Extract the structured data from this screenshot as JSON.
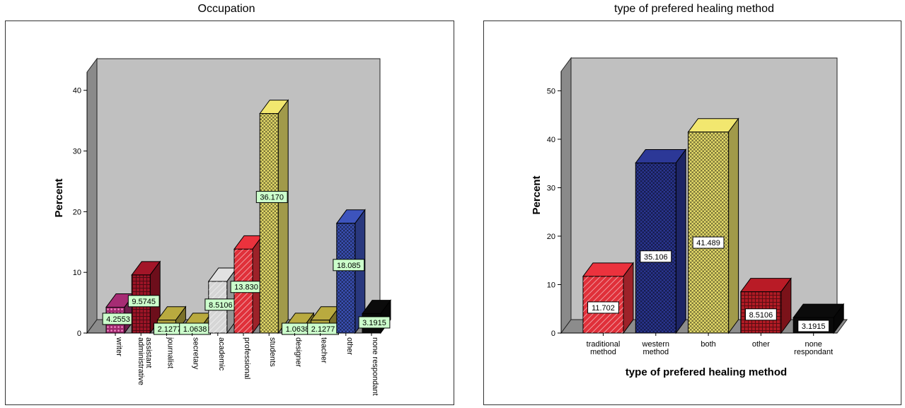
{
  "colors": {
    "background": "#ffffff",
    "frame": "#ffffff",
    "plot_back": "#c0c0c0",
    "side_wall": "#8a8a8a",
    "floor": "#8c8c8c",
    "label_occupation": "#ccffcc",
    "label_healing": "#ffffff"
  },
  "chart_data": [
    {
      "type": "bar",
      "title": "Occupation",
      "xlabel": "",
      "ylabel": "Percent",
      "ylim": [
        0,
        43
      ],
      "yticks": [
        0,
        10,
        20,
        30,
        40
      ],
      "grid": false,
      "legend": "none",
      "rotated_category_labels": true,
      "label_fill": "#ccffcc",
      "categories": [
        "writer",
        "administrative assistant",
        "journalist",
        "secretary",
        "academic",
        "professional",
        "students",
        "designer",
        "teacher",
        "other",
        "none respondant"
      ],
      "values": [
        4.2553,
        9.5745,
        2.1277,
        1.0638,
        8.5106,
        13.83,
        36.17,
        1.0638,
        2.1277,
        18.085,
        3.1915
      ],
      "value_labels": [
        "4.2553",
        "9.5745",
        "2.1277",
        "1.0638",
        "8.5106",
        "13.830",
        "36.170",
        "1.0638",
        "2.1277",
        "18.085",
        "3.1915"
      ],
      "bar_colors": [
        "#9e2a6e",
        "#9b1426",
        "#b0a23c",
        "#b0a23c",
        "#d6d6d6",
        "#e0303a",
        "#e6dc6a",
        "#b0a23c",
        "#b0a23c",
        "#3a50b4",
        "#0a0a0a"
      ],
      "bar_patterns": [
        "dots",
        "grid",
        "none",
        "none",
        "hatch",
        "hatch",
        "check",
        "none",
        "none",
        "check",
        "none"
      ]
    },
    {
      "type": "bar",
      "title": "type of prefered healing method",
      "xlabel": "type of prefered healing method",
      "ylabel": "Percent",
      "ylim": [
        0,
        54
      ],
      "yticks": [
        0,
        10,
        20,
        30,
        40,
        50
      ],
      "grid": false,
      "legend": "none",
      "rotated_category_labels": false,
      "label_fill": "#ffffff",
      "categories": [
        "traditional method",
        "western method",
        "both",
        "other",
        "none respondant"
      ],
      "values": [
        11.702,
        35.106,
        41.489,
        8.5106,
        3.1915
      ],
      "value_labels": [
        "11.702",
        "35.106",
        "41.489",
        "8.5106",
        "3.1915"
      ],
      "bar_colors": [
        "#e0303a",
        "#2a3590",
        "#e6dc6a",
        "#b01a24",
        "#0a0a0a"
      ],
      "bar_patterns": [
        "hatch",
        "check",
        "check",
        "grid",
        "none"
      ]
    }
  ]
}
